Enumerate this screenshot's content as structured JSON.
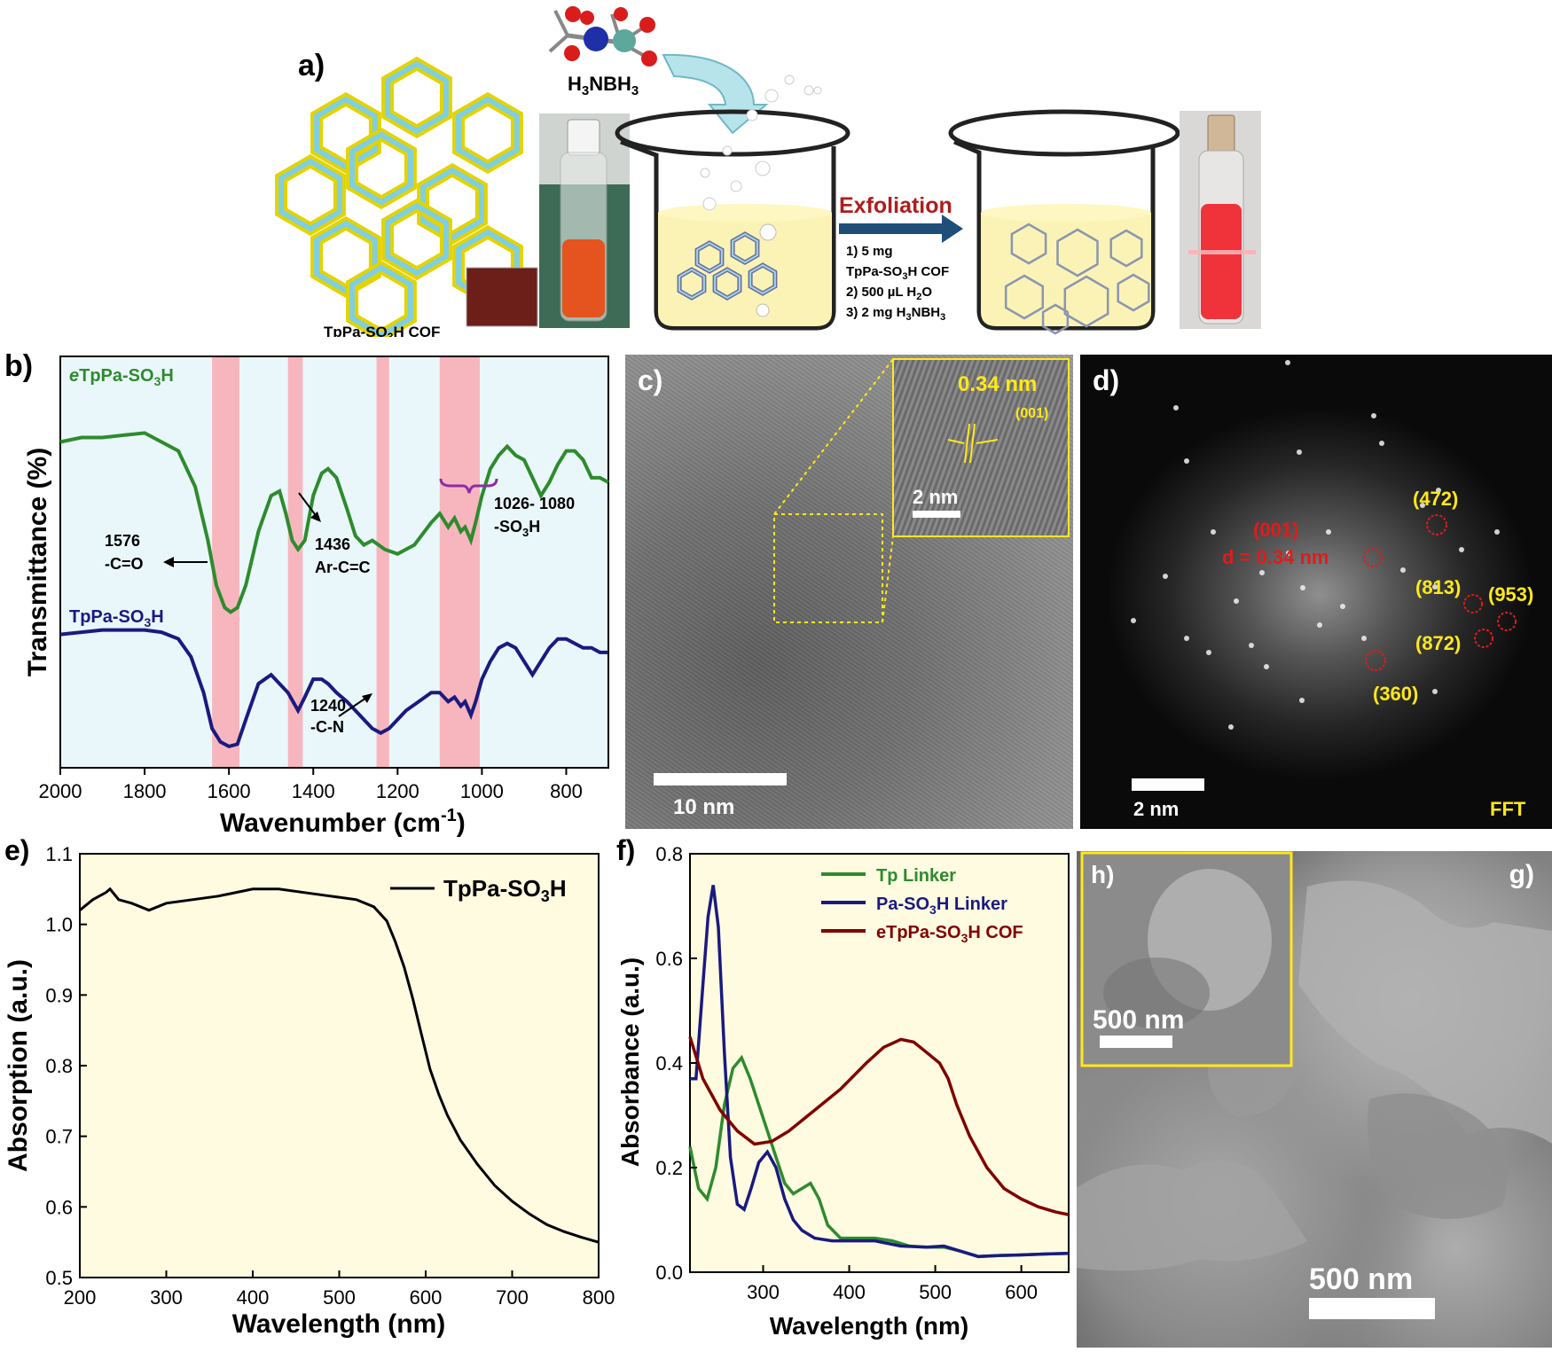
{
  "panel_letters": {
    "a": "a)",
    "b": "b)",
    "c": "c)",
    "d": "d)",
    "e": "e)",
    "f": "f)",
    "g": "g)",
    "h": "h)"
  },
  "scheme": {
    "molecule_label": "H3NBH3",
    "cof_label": "TpPa-SO3H COF",
    "exfoliation_label": "Exfoliation",
    "steps": [
      "1) 5 mg",
      "TpPa-SO3H COF",
      "2) 500 µL H2O",
      "3) 2 mg H3NBH3"
    ]
  },
  "tem": {
    "inset_distance": "0.34 nm",
    "inset_plane": "(001)",
    "inset_scale": "2 nm",
    "scale": "10 nm"
  },
  "fft": {
    "plane_001": "(001)",
    "d_label": "d = 0.34 nm",
    "spots": [
      "(472)",
      "(813)",
      "(953)",
      "(872)",
      "(360)"
    ],
    "scale": "2 nm",
    "label": "FFT"
  },
  "sem": {
    "inset_scale": "500 nm",
    "scale": "500 nm"
  },
  "colors": {
    "green": "#2e8b2e",
    "blue": "#1a1a80",
    "darkred": "#800000",
    "band_pink": "#f7b6bd",
    "panel_b_bg": "#eaf7fa",
    "panel_ef_bg": "#fefbe0",
    "yellow": "#ffe81a",
    "red_label": "#e11b1b"
  },
  "chart_data": [
    {
      "id": "b",
      "type": "line",
      "xlabel": "Wavenumber (cm-1)",
      "ylabel": "Transmittance (%)",
      "xlim": [
        2000,
        700
      ],
      "x_reversed": true,
      "xticks": [
        2000,
        1800,
        1600,
        1400,
        1200,
        1000,
        800
      ],
      "yticks_shown": false,
      "highlight_bands": [
        [
          1640,
          1575
        ],
        [
          1460,
          1425
        ],
        [
          1250,
          1220
        ],
        [
          1100,
          1005
        ]
      ],
      "series": [
        {
          "name": "eTpPa-SO3H",
          "color_key": "green",
          "x": [
            2000,
            1950,
            1900,
            1850,
            1800,
            1760,
            1720,
            1680,
            1650,
            1630,
            1610,
            1596,
            1580,
            1560,
            1530,
            1500,
            1480,
            1465,
            1450,
            1436,
            1420,
            1400,
            1380,
            1365,
            1345,
            1320,
            1300,
            1280,
            1260,
            1230,
            1200,
            1160,
            1120,
            1100,
            1080,
            1065,
            1050,
            1040,
            1026,
            1015,
            1000,
            980,
            960,
            940,
            920,
            900,
            880,
            860,
            840,
            820,
            800,
            780,
            760,
            740,
            720,
            700
          ],
          "y": [
            70,
            71,
            71,
            71.5,
            72,
            70,
            68,
            60,
            48,
            38,
            33,
            32,
            33,
            38,
            50,
            58,
            59,
            54,
            48,
            46,
            48,
            58,
            63,
            64,
            62,
            55,
            49,
            47,
            48,
            46,
            45,
            47,
            52,
            54,
            51,
            53,
            50,
            51,
            48,
            52,
            58,
            64,
            67,
            69,
            67,
            66,
            62,
            58,
            61,
            65,
            68,
            68,
            66,
            62,
            62,
            61
          ]
        },
        {
          "name": "TpPa-SO3H",
          "color_key": "blue",
          "x": [
            2000,
            1950,
            1900,
            1850,
            1800,
            1760,
            1720,
            1690,
            1660,
            1640,
            1620,
            1600,
            1580,
            1560,
            1530,
            1500,
            1480,
            1460,
            1436,
            1420,
            1400,
            1380,
            1365,
            1345,
            1320,
            1300,
            1280,
            1260,
            1240,
            1220,
            1200,
            1180,
            1150,
            1120,
            1100,
            1080,
            1065,
            1050,
            1040,
            1026,
            1015,
            1000,
            980,
            960,
            940,
            920,
            900,
            880,
            860,
            840,
            820,
            800,
            780,
            760,
            740,
            720,
            700
          ],
          "y": [
            27,
            27.5,
            28,
            28,
            28,
            27.5,
            26,
            22,
            14,
            6,
            3,
            2,
            2.5,
            8,
            16,
            18,
            16,
            14,
            10,
            13,
            17,
            17,
            16,
            14,
            12,
            10,
            8,
            6,
            5,
            6,
            8,
            10,
            12,
            14,
            14,
            12,
            13,
            11,
            12,
            9,
            12,
            17,
            21,
            24,
            25,
            24,
            21,
            18,
            21,
            24,
            26,
            26,
            25,
            24,
            24,
            23,
            23
          ]
        }
      ],
      "annotations": [
        {
          "text": [
            "1576",
            "-C=O"
          ]
        },
        {
          "text": [
            "1436",
            "Ar-C=C"
          ]
        },
        {
          "text": [
            "1026- 1080",
            "-SO3H"
          ]
        },
        {
          "text": [
            "1240",
            "-C-N"
          ]
        }
      ]
    },
    {
      "id": "e",
      "type": "line",
      "xlabel": "Wavelength (nm)",
      "ylabel": "Absorption (a.u.)",
      "xlim": [
        200,
        800
      ],
      "ylim": [
        0.5,
        1.1
      ],
      "xticks": [
        200,
        300,
        400,
        500,
        600,
        700,
        800
      ],
      "yticks": [
        0.5,
        0.6,
        0.7,
        0.8,
        0.9,
        1.0,
        1.1
      ],
      "series": [
        {
          "name": "TpPa-SO3H",
          "color_key": "black",
          "x": [
            200,
            215,
            230,
            235,
            245,
            260,
            280,
            300,
            330,
            360,
            400,
            430,
            460,
            490,
            520,
            540,
            555,
            565,
            575,
            585,
            595,
            605,
            615,
            625,
            640,
            660,
            680,
            700,
            720,
            740,
            760,
            780,
            800
          ],
          "y": [
            1.02,
            1.035,
            1.045,
            1.05,
            1.035,
            1.03,
            1.02,
            1.03,
            1.035,
            1.04,
            1.05,
            1.05,
            1.045,
            1.04,
            1.035,
            1.025,
            1.005,
            0.975,
            0.94,
            0.895,
            0.845,
            0.795,
            0.76,
            0.73,
            0.695,
            0.66,
            0.63,
            0.608,
            0.59,
            0.575,
            0.565,
            0.557,
            0.55
          ]
        }
      ]
    },
    {
      "id": "f",
      "type": "line",
      "xlabel": "Wavelength (nm)",
      "ylabel": "Absorbance (a.u.)",
      "xlim": [
        215,
        655
      ],
      "ylim": [
        0,
        0.8
      ],
      "xticks": [
        300,
        400,
        500,
        600
      ],
      "yticks": [
        0.0,
        0.2,
        0.4,
        0.6,
        0.8
      ],
      "series": [
        {
          "name": "Tp Linker",
          "color_key": "green",
          "x": [
            215,
            225,
            235,
            245,
            255,
            265,
            275,
            285,
            295,
            305,
            315,
            325,
            335,
            345,
            355,
            365,
            375,
            390,
            410,
            430,
            450,
            470,
            490,
            510,
            530,
            550,
            575,
            600,
            630,
            655
          ],
          "y": [
            0.24,
            0.16,
            0.14,
            0.2,
            0.32,
            0.39,
            0.41,
            0.37,
            0.32,
            0.27,
            0.22,
            0.17,
            0.15,
            0.16,
            0.17,
            0.14,
            0.09,
            0.065,
            0.065,
            0.065,
            0.06,
            0.05,
            0.048,
            0.048,
            0.04,
            0.03,
            0.032,
            0.033,
            0.035,
            0.036
          ]
        },
        {
          "name": "Pa-SO3H Linker",
          "color_key": "blue",
          "x": [
            215,
            222,
            230,
            236,
            242,
            248,
            255,
            262,
            270,
            278,
            286,
            295,
            305,
            315,
            325,
            335,
            345,
            360,
            380,
            400,
            430,
            460,
            490,
            510,
            530,
            550,
            575,
            600,
            630,
            655
          ],
          "y": [
            0.37,
            0.37,
            0.55,
            0.68,
            0.74,
            0.66,
            0.42,
            0.22,
            0.13,
            0.12,
            0.16,
            0.21,
            0.23,
            0.2,
            0.14,
            0.1,
            0.08,
            0.065,
            0.06,
            0.06,
            0.06,
            0.05,
            0.048,
            0.05,
            0.04,
            0.03,
            0.032,
            0.033,
            0.035,
            0.036
          ]
        },
        {
          "name": "eTpPa-SO3H COF",
          "color_key": "darkred",
          "x": [
            215,
            230,
            250,
            270,
            290,
            310,
            330,
            360,
            390,
            420,
            440,
            460,
            475,
            490,
            505,
            515,
            525,
            540,
            560,
            580,
            600,
            620,
            640,
            655
          ],
          "y": [
            0.45,
            0.37,
            0.31,
            0.27,
            0.245,
            0.25,
            0.27,
            0.31,
            0.35,
            0.4,
            0.43,
            0.445,
            0.44,
            0.42,
            0.4,
            0.37,
            0.32,
            0.26,
            0.2,
            0.16,
            0.14,
            0.125,
            0.115,
            0.11
          ]
        }
      ]
    }
  ]
}
